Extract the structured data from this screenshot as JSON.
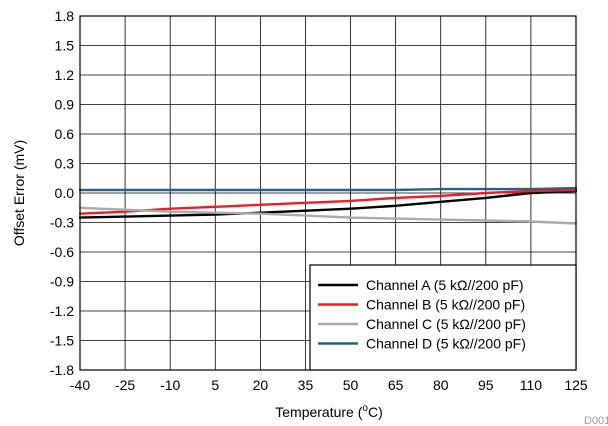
{
  "chart_data": {
    "type": "line",
    "xlabel_main": "Temperature (",
    "xlabel_sup": "o",
    "xlabel_end": "C)",
    "ylabel": "Offset Error (mV)",
    "xlim": [
      -40,
      125
    ],
    "ylim": [
      -1.8,
      1.8
    ],
    "x_ticks": [
      -40,
      -25,
      -10,
      5,
      20,
      35,
      50,
      65,
      80,
      95,
      110,
      125
    ],
    "y_ticks": [
      "1.8",
      "1.5",
      "1.2",
      "0.9",
      "0.6",
      "0.3",
      "0.0",
      "-0.3",
      "-0.6",
      "-0.9",
      "-1.2",
      "-1.5",
      "-1.8"
    ],
    "grid": true,
    "legend_position": "bottom-right",
    "figure_code": "D001",
    "x": [
      -40,
      -25,
      -10,
      5,
      20,
      35,
      50,
      65,
      80,
      95,
      110,
      125
    ],
    "series": [
      {
        "name": "Channel A (5 kΩ//200 pF)",
        "color": "#000000",
        "values": [
          -0.25,
          -0.24,
          -0.23,
          -0.22,
          -0.2,
          -0.18,
          -0.16,
          -0.13,
          -0.09,
          -0.05,
          0.0,
          0.02
        ]
      },
      {
        "name": "Channel B (5 kΩ//200 pF)",
        "color": "#ee1c25",
        "values": [
          -0.21,
          -0.19,
          -0.16,
          -0.14,
          -0.12,
          -0.1,
          -0.08,
          -0.05,
          -0.03,
          0.0,
          0.02,
          0.03
        ]
      },
      {
        "name": "Channel C (5 kΩ//200 pF)",
        "color": "#aaaaaa",
        "values": [
          -0.15,
          -0.17,
          -0.19,
          -0.2,
          -0.21,
          -0.23,
          -0.25,
          -0.26,
          -0.27,
          -0.28,
          -0.29,
          -0.31
        ]
      },
      {
        "name": "Channel D (5 kΩ//200 pF)",
        "color": "#2b5f86",
        "values": [
          0.03,
          0.03,
          0.03,
          0.03,
          0.03,
          0.03,
          0.03,
          0.03,
          0.04,
          0.04,
          0.04,
          0.05
        ]
      }
    ]
  }
}
